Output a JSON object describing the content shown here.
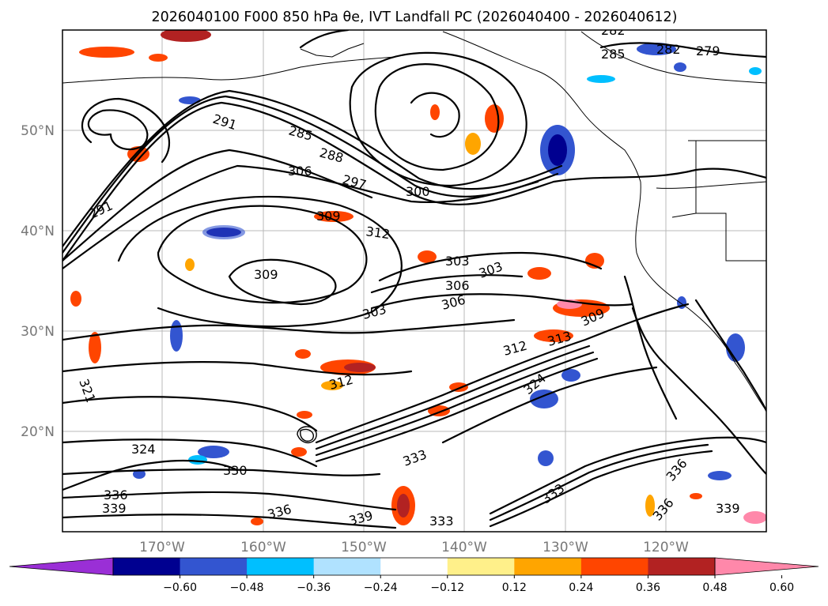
{
  "title": "2026040100 F000 850 hPa θe, IVT Landfall PC (2026040400 - 2026040612)",
  "axes": {
    "lat_labels": [
      "50°N",
      "40°N",
      "30°N",
      "20°N"
    ],
    "lon_labels": [
      "170°W",
      "160°W",
      "150°W",
      "140°W",
      "130°W",
      "120°W"
    ]
  },
  "colorbar": {
    "ticks": [
      "−0.60",
      "−0.48",
      "−0.36",
      "−0.24",
      "−0.12",
      "0.12",
      "0.24",
      "0.36",
      "0.48",
      "0.60"
    ],
    "colors": [
      "#9a2fd6",
      "#000090",
      "#3355d0",
      "#00bfff",
      "#b0e2ff",
      "#ffffff",
      "#fff08a",
      "#ffa500",
      "#ff4500",
      "#b22222",
      "#ff88aa"
    ],
    "extend": "both"
  },
  "contour_labels": [
    "282",
    "285",
    "282",
    "279",
    "285",
    "288",
    "291",
    "306",
    "297",
    "300",
    "291",
    "309",
    "312",
    "309",
    "303",
    "306",
    "303",
    "306",
    "303",
    "309",
    "312",
    "313",
    "312",
    "321",
    "324",
    "324",
    "330",
    "333",
    "336",
    "339",
    "336",
    "339",
    "333",
    "333",
    "336",
    "336",
    "339"
  ]
}
